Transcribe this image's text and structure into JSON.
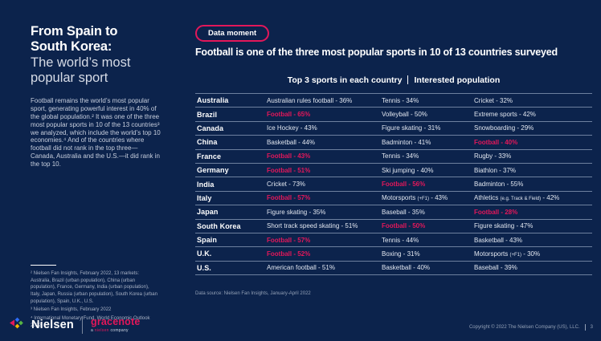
{
  "colors": {
    "background": "#0c234c",
    "accent": "#e3175a",
    "row_separator": "#afbed7",
    "body_text": "#c7cedd",
    "muted_text": "#93a0b6"
  },
  "sidebar": {
    "title_bold": "From Spain to South Korea:",
    "title_light": "The world’s most popular sport",
    "body": "Football remains the world’s most popular sport, generating powerful interest in 40% of the global population.² It was one of the three most popular sports in 10 of the 13 countries³ we analyzed, which include the world’s top 10 economies.⁴ And of the countries where football did not rank in the top three—Canada, Australia and the U.S.—it did rank in the top 10.",
    "footnotes": [
      "² Nielsen Fan Insights, February 2022, 13 markets: Australia, Brazil (urban population), China (urban population), France, Germany, India (urban population), Italy, Japan, Russia (urban population), South Korea (urban population), Spain, U.K., U.S.",
      "³ Nielsen Fan Insights, February 2022",
      "⁴ International Monetary Fund, World Economic Outlook 2022"
    ]
  },
  "header": {
    "badge": "Data moment",
    "headline": "Football is one of the three most popular sports in 10 of 13 countries surveyed"
  },
  "table": {
    "title_left": "Top 3 sports in each country",
    "title_right": "Interested population",
    "source": "Data source: Nielsen Fan Insights, January-April 2022",
    "rows": [
      {
        "country": "Australia",
        "sports": [
          {
            "pre": "Australian rules football - 36%"
          },
          {
            "pre": "Tennis - 34%"
          },
          {
            "pre": "Cricket - 32%"
          }
        ]
      },
      {
        "country": "Brazil",
        "sports": [
          {
            "pre": "Football - 65%",
            "hl": true
          },
          {
            "pre": "Volleyball - 50%"
          },
          {
            "pre": "Extreme sports - 42%"
          }
        ]
      },
      {
        "country": "Canada",
        "sports": [
          {
            "pre": "Ice Hockey - 43%"
          },
          {
            "pre": "Figure skating - 31%"
          },
          {
            "pre": "Snowboarding - 29%"
          }
        ]
      },
      {
        "country": "China",
        "sports": [
          {
            "pre": "Basketball - 44%"
          },
          {
            "pre": "Badminton - 41%"
          },
          {
            "pre": "Football - 40%",
            "hl": true
          }
        ]
      },
      {
        "country": "France",
        "sports": [
          {
            "pre": "Football - 43%",
            "hl": true
          },
          {
            "pre": "Tennis - 34%"
          },
          {
            "pre": "Rugby - 33%"
          }
        ]
      },
      {
        "country": "Germany",
        "sports": [
          {
            "pre": "Football - 51%",
            "hl": true
          },
          {
            "pre": "Ski jumping - 40%"
          },
          {
            "pre": "Biathlon - 37%"
          }
        ]
      },
      {
        "country": "India",
        "sports": [
          {
            "pre": "Cricket - 73%"
          },
          {
            "pre": "Football - 56%",
            "hl": true
          },
          {
            "pre": "Badminton - 55%"
          }
        ]
      },
      {
        "country": "Italy",
        "sports": [
          {
            "pre": "Football - 57%",
            "hl": true
          },
          {
            "pre": "Motorsports ",
            "small": "(+F1)",
            "post": " - 43%"
          },
          {
            "pre": "Athletics ",
            "small": "(e.g. Track & Field)",
            "post": " - 42%"
          }
        ]
      },
      {
        "country": "Japan",
        "sports": [
          {
            "pre": "Figure skating - 35%"
          },
          {
            "pre": "Baseball - 35%"
          },
          {
            "pre": "Football - 28%",
            "hl": true
          }
        ]
      },
      {
        "country": "South Korea",
        "sports": [
          {
            "pre": "Short track speed skating - 51%"
          },
          {
            "pre": "Football - 50%",
            "hl": true
          },
          {
            "pre": "Figure skating - 47%"
          }
        ]
      },
      {
        "country": "Spain",
        "sports": [
          {
            "pre": "Football - 57%",
            "hl": true
          },
          {
            "pre": "Tennis - 44%"
          },
          {
            "pre": "Basketball - 43%"
          }
        ]
      },
      {
        "country": "U.K.",
        "sports": [
          {
            "pre": "Football - 52%",
            "hl": true
          },
          {
            "pre": "Boxing - 31%"
          },
          {
            "pre": "Motorsports ",
            "small": "(+F1)",
            "post": " - 30%"
          }
        ]
      },
      {
        "country": "U.S.",
        "sports": [
          {
            "pre": "American football - 51%"
          },
          {
            "pre": "Basketball - 40%"
          },
          {
            "pre": "Baseball - 39%"
          }
        ]
      }
    ]
  },
  "footer": {
    "nielsen": "Nielsen",
    "gracenote": "gracenote",
    "tagline_a": "a",
    "tagline_b": "nielsen",
    "tagline_c": "company",
    "copyright": "Copyright © 2022 The Nielsen Company (US), LLC.",
    "page": "3"
  }
}
